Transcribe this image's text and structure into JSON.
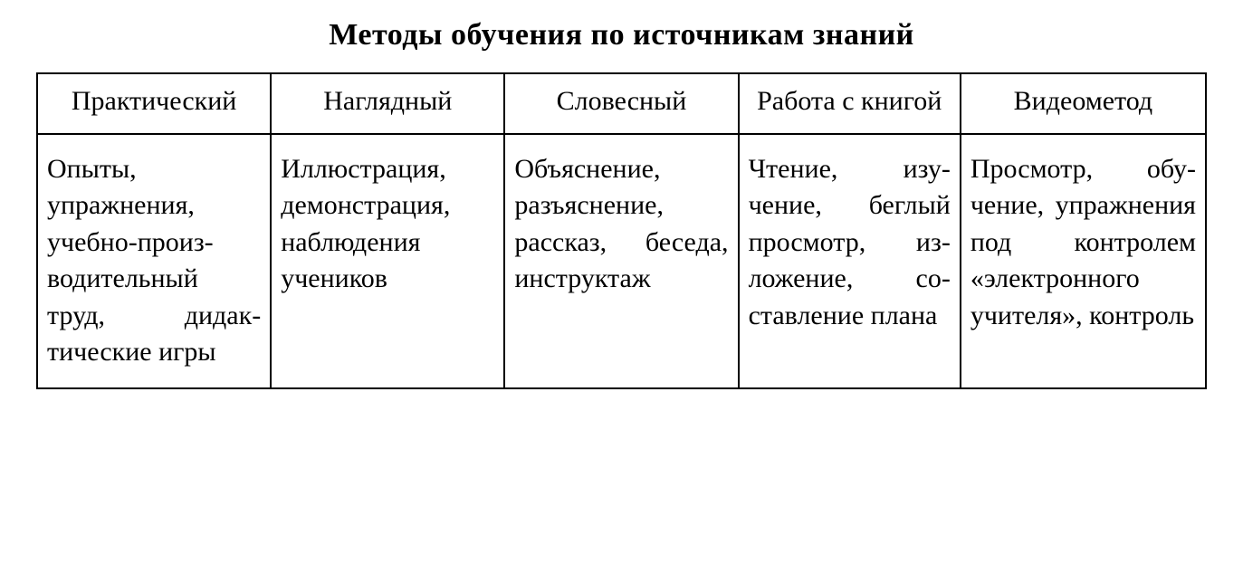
{
  "title": "Методы обучения по источникам знаний",
  "table": {
    "type": "table",
    "border_color": "#000000",
    "background_color": "#ffffff",
    "text_color": "#000000",
    "font_family": "Times New Roman",
    "title_fontsize": 34,
    "cell_fontsize": 30,
    "border_width": 2,
    "column_widths_pct": [
      20,
      20,
      20,
      19,
      21
    ],
    "columns": [
      "Практи­ческий",
      "Наглядный",
      "Словесный",
      "Работа с книгой",
      "Видеометод"
    ],
    "rows": [
      [
        "Опыты, упражнения, учебно-произ­водительный труд, дидак­тические игры",
        "Иллюстрация, демонстра­ция, наблюде­ния учеников",
        "Объяснение, разъяснение, рассказ, бесе­да, инструктаж",
        "Чтение, изу­чение, беглый просмотр, из­ложение, со­ставление плана",
        "Просмотр, обу­чение, упраж­нения под конт­ролем «элек­тронного учи­теля», контроль"
      ]
    ]
  }
}
